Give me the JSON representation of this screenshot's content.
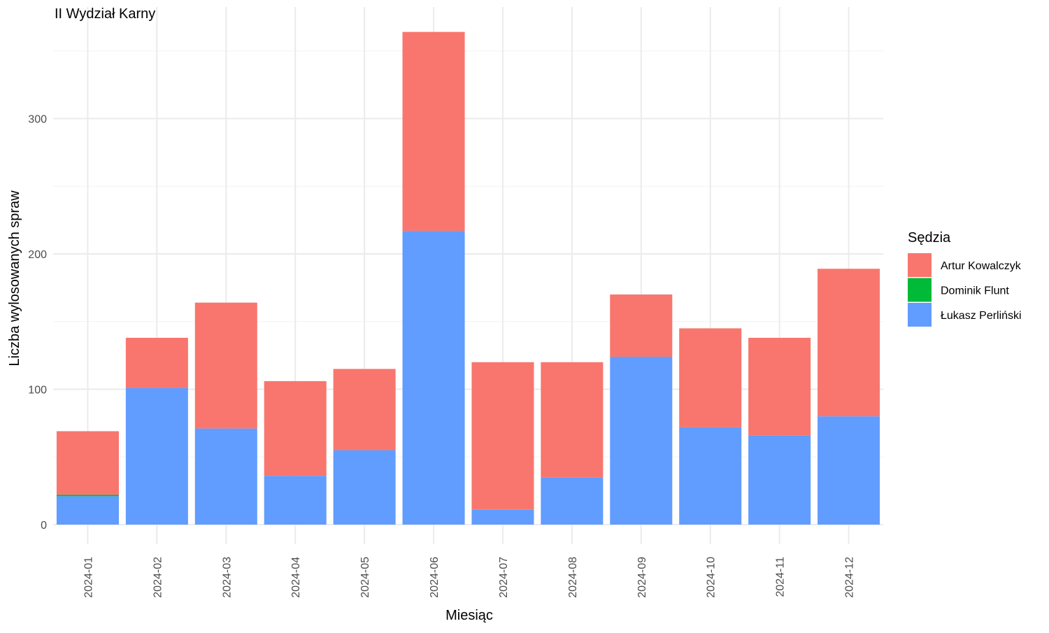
{
  "chart_data": {
    "type": "bar",
    "stacked": true,
    "title": "II Wydział Karny",
    "xlabel": "Miesiąc",
    "ylabel": "Liczba wylosowanych spraw",
    "categories": [
      "2024-01",
      "2024-02",
      "2024-03",
      "2024-04",
      "2024-05",
      "2024-06",
      "2024-07",
      "2024-08",
      "2024-09",
      "2024-10",
      "2024-11",
      "2024-12"
    ],
    "ylim": [
      0,
      380
    ],
    "yticks": [
      0,
      100,
      200,
      300
    ],
    "grid": true,
    "legend": {
      "title": "Sędzia",
      "position": "right"
    },
    "series": [
      {
        "name": "Łukasz Perliński",
        "color": "#619CFF",
        "values": [
          21,
          101,
          71,
          36,
          55,
          217,
          11,
          35,
          124,
          72,
          66,
          80
        ]
      },
      {
        "name": "Dominik Flunt",
        "color": "#00BA38",
        "values": [
          1,
          0,
          0,
          0,
          0,
          0,
          0,
          0,
          0,
          0,
          0,
          0
        ]
      },
      {
        "name": "Artur Kowalczyk",
        "color": "#F8766D",
        "values": [
          47,
          37,
          93,
          70,
          60,
          147,
          109,
          85,
          46,
          73,
          72,
          109
        ]
      }
    ],
    "legend_order": [
      "Artur Kowalczyk",
      "Dominik Flunt",
      "Łukasz Perliński"
    ]
  }
}
